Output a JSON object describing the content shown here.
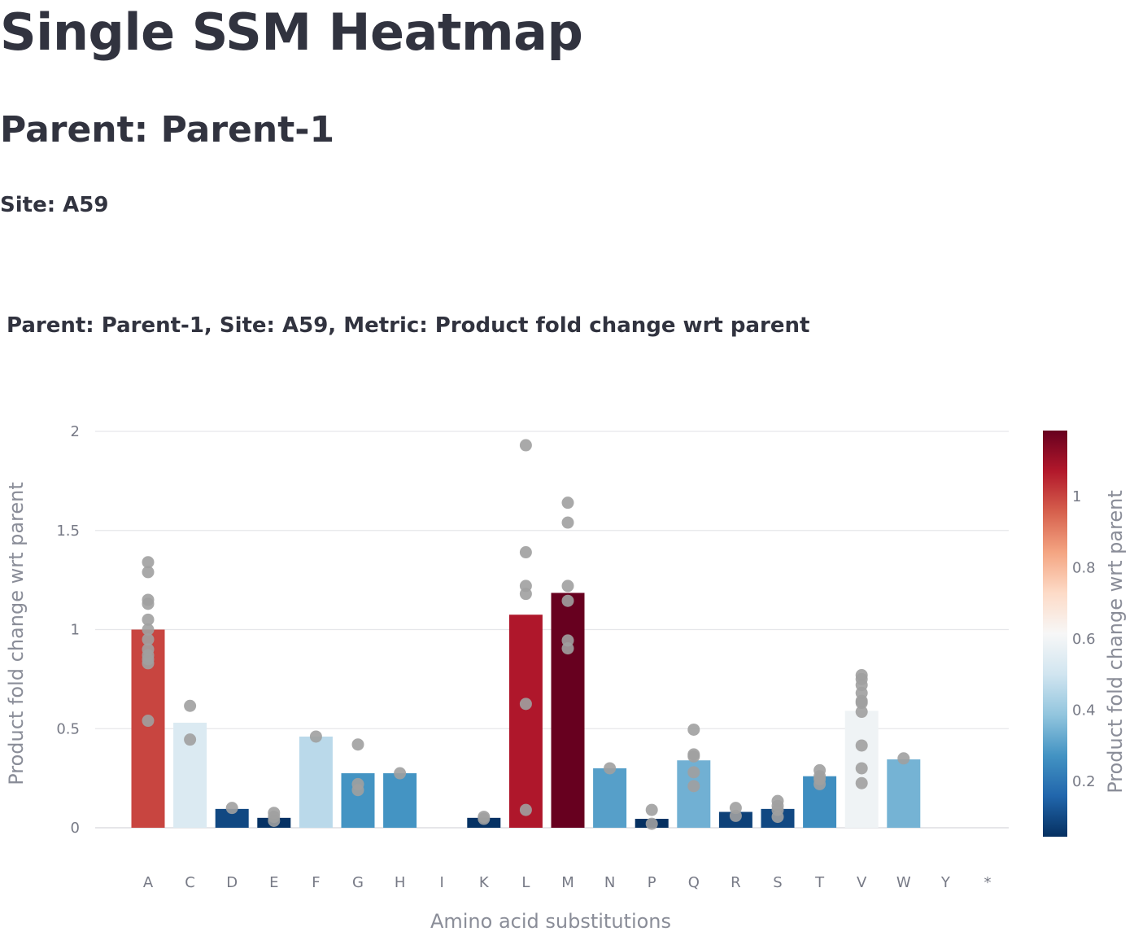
{
  "page": {
    "title": "Single SSM Heatmap",
    "parent_heading": "Parent: Parent-1",
    "site_heading": "Site: A59"
  },
  "chart_data": {
    "type": "bar",
    "title": "Parent: Parent-1, Site: A59, Metric: Product fold change wrt parent",
    "xlabel": "Amino acid substitutions",
    "ylabel": "Product fold change wrt parent",
    "ylim": [
      0,
      2
    ],
    "yticks": [
      0,
      0.5,
      1,
      1.5,
      2
    ],
    "ytick_labels": [
      "0",
      "0.5",
      "1",
      "1.5",
      "2"
    ],
    "grid": true,
    "categories": [
      "A",
      "C",
      "D",
      "E",
      "F",
      "G",
      "H",
      "I",
      "K",
      "L",
      "M",
      "N",
      "P",
      "Q",
      "R",
      "S",
      "T",
      "V",
      "W",
      "Y",
      "*"
    ],
    "values": [
      1.0,
      0.53,
      0.095,
      0.05,
      0.46,
      0.275,
      0.275,
      null,
      0.05,
      1.075,
      1.185,
      0.3,
      0.045,
      0.34,
      0.08,
      0.095,
      0.26,
      0.59,
      0.345,
      null,
      null
    ],
    "points": [
      [
        1.34,
        1.29,
        1.15,
        1.13,
        1.05,
        1.0,
        0.95,
        0.9,
        0.87,
        0.85,
        0.83,
        0.54
      ],
      [
        0.615,
        0.445
      ],
      [
        0.1
      ],
      [
        0.075,
        0.055,
        0.035
      ],
      [
        0.46
      ],
      [
        0.42,
        0.22,
        0.19
      ],
      [
        0.275
      ],
      [],
      [
        0.055,
        0.045
      ],
      [
        1.93,
        1.39,
        1.22,
        1.18,
        0.625,
        0.09
      ],
      [
        1.64,
        1.54,
        1.22,
        1.145,
        0.945,
        0.905
      ],
      [
        0.3
      ],
      [
        0.09,
        0.02
      ],
      [
        0.495,
        0.37,
        0.36,
        0.28,
        0.21
      ],
      [
        0.1,
        0.06
      ],
      [
        0.135,
        0.11,
        0.09,
        0.055
      ],
      [
        0.29,
        0.26,
        0.245,
        0.22
      ],
      [
        0.77,
        0.75,
        0.72,
        0.68,
        0.64,
        0.63,
        0.585,
        0.415,
        0.3,
        0.225
      ],
      [
        0.35
      ],
      [],
      []
    ],
    "point_color": "#a0a0a0",
    "colorbar": {
      "title": "Product fold change wrt parent",
      "range": [
        0.045,
        1.185
      ],
      "ticks": [
        0.2,
        0.4,
        0.6,
        0.8,
        1
      ],
      "tick_labels": [
        "0.2",
        "0.4",
        "0.6",
        "0.8",
        "1"
      ],
      "colorscale": [
        "#053061",
        "#2166ac",
        "#4393c3",
        "#92c5de",
        "#d1e5f0",
        "#f7f7f7",
        "#fddbc7",
        "#f4a582",
        "#d6604d",
        "#b2182b",
        "#67001f"
      ]
    }
  }
}
